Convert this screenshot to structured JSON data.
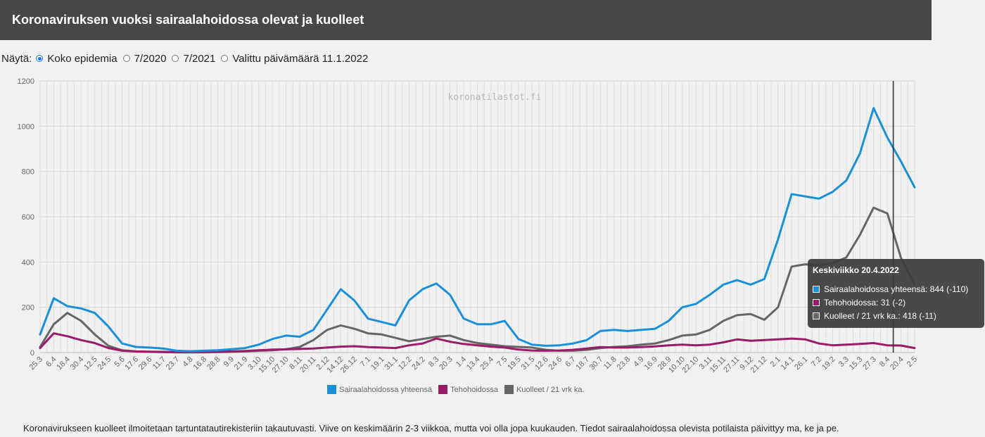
{
  "header": {
    "title": "Koronaviruksen vuoksi sairaalahoidossa olevat ja kuolleet"
  },
  "filter": {
    "label": "Näytä:",
    "options": [
      {
        "label": "Koko epidemia",
        "selected": true
      },
      {
        "label": "7/2020",
        "selected": false
      },
      {
        "label": "7/2021",
        "selected": false
      },
      {
        "label": "Valittu päivämäärä 11.1.2022",
        "selected": false
      }
    ]
  },
  "watermark": "koronatilastot.fi",
  "tooltip": {
    "title": "Keskiviikko 20.4.2022",
    "rows": [
      {
        "text": "Sairaalahoidossa yhteensä: 844 (-110)",
        "color": "#1a90d8"
      },
      {
        "text": "Tehohoidossa: 31 (-2)",
        "color": "#9b1b6b"
      },
      {
        "text": "Kuolleet / 21 vrk ka.: 418 (-11)",
        "color": "#666666"
      }
    ]
  },
  "footer": "Koronavirukseen kuolleet ilmoitetaan tartuntatautirekisteriin takautuvasti. Viive on keskimäärin 2-3 viikkoa, mutta voi olla jopa kuukauden. Tiedot sairaalahoidossa olevista potilaista päivittyy ma, ke ja pe.",
  "chart_data": {
    "type": "line",
    "x": [
      "25.3",
      "6.4",
      "18.4",
      "30.4",
      "12.5",
      "24.5",
      "5.6",
      "17.6",
      "29.6",
      "11.7",
      "23.7",
      "4.8",
      "16.8",
      "28.8",
      "9.9",
      "21.9",
      "3.10",
      "15.10",
      "27.10",
      "8.11",
      "20.11",
      "2.12",
      "14.12",
      "26.12",
      "7.1",
      "19.1",
      "31.1",
      "12.2",
      "24.2",
      "8.3",
      "20.3",
      "1.4",
      "13.4",
      "25.4",
      "7.5",
      "19.5",
      "31.5",
      "12.6",
      "24.6",
      "6.7",
      "18.7",
      "30.7",
      "11.8",
      "23.8",
      "4.9",
      "16.9",
      "28.9",
      "10.10",
      "22.10",
      "3.11",
      "15.11",
      "27.11",
      "9.12",
      "21.12",
      "2.1",
      "14.1",
      "26.1",
      "7.2",
      "19.2",
      "3.3",
      "15.3",
      "27.3",
      "8.4",
      "20.4",
      "2.5"
    ],
    "ylim": [
      0,
      1200
    ],
    "yticks": [
      0,
      200,
      400,
      600,
      800,
      1000,
      1200
    ],
    "grid": true,
    "legend_position": "bottom",
    "marker_x": "20.4",
    "series": [
      {
        "name": "Sairaalahoidossa yhteensä",
        "color": "#1a90d8",
        "values": [
          80,
          240,
          205,
          195,
          175,
          115,
          40,
          25,
          22,
          18,
          8,
          6,
          8,
          10,
          15,
          20,
          35,
          60,
          75,
          70,
          100,
          190,
          280,
          230,
          150,
          135,
          120,
          230,
          280,
          305,
          255,
          150,
          125,
          125,
          140,
          60,
          35,
          30,
          32,
          40,
          55,
          95,
          100,
          95,
          100,
          105,
          140,
          200,
          215,
          255,
          300,
          320,
          300,
          325,
          500,
          700,
          690,
          680,
          710,
          760,
          880,
          1080,
          950,
          844,
          730
        ]
      },
      {
        "name": "Tehohoidossa",
        "color": "#9b1b6b",
        "values": [
          20,
          85,
          72,
          55,
          42,
          20,
          8,
          5,
          4,
          3,
          2,
          2,
          3,
          4,
          5,
          7,
          10,
          13,
          14,
          16,
          18,
          22,
          26,
          28,
          24,
          22,
          20,
          32,
          40,
          62,
          48,
          38,
          32,
          26,
          22,
          13,
          9,
          8,
          9,
          12,
          18,
          24,
          22,
          22,
          24,
          27,
          32,
          35,
          32,
          35,
          45,
          58,
          52,
          55,
          58,
          62,
          58,
          40,
          32,
          35,
          38,
          42,
          32,
          31,
          20
        ]
      },
      {
        "name": "Kuolleet / 21 vrk ka.",
        "color": "#666666",
        "values": [
          25,
          125,
          175,
          140,
          80,
          30,
          10,
          5,
          3,
          2,
          1,
          1,
          1,
          2,
          3,
          5,
          8,
          10,
          15,
          25,
          55,
          100,
          120,
          105,
          85,
          80,
          65,
          50,
          60,
          70,
          75,
          55,
          42,
          35,
          28,
          25,
          22,
          12,
          8,
          8,
          12,
          20,
          25,
          28,
          35,
          40,
          55,
          75,
          80,
          100,
          140,
          165,
          170,
          145,
          200,
          380,
          390,
          385,
          395,
          420,
          520,
          640,
          615,
          418,
          300
        ]
      }
    ]
  }
}
